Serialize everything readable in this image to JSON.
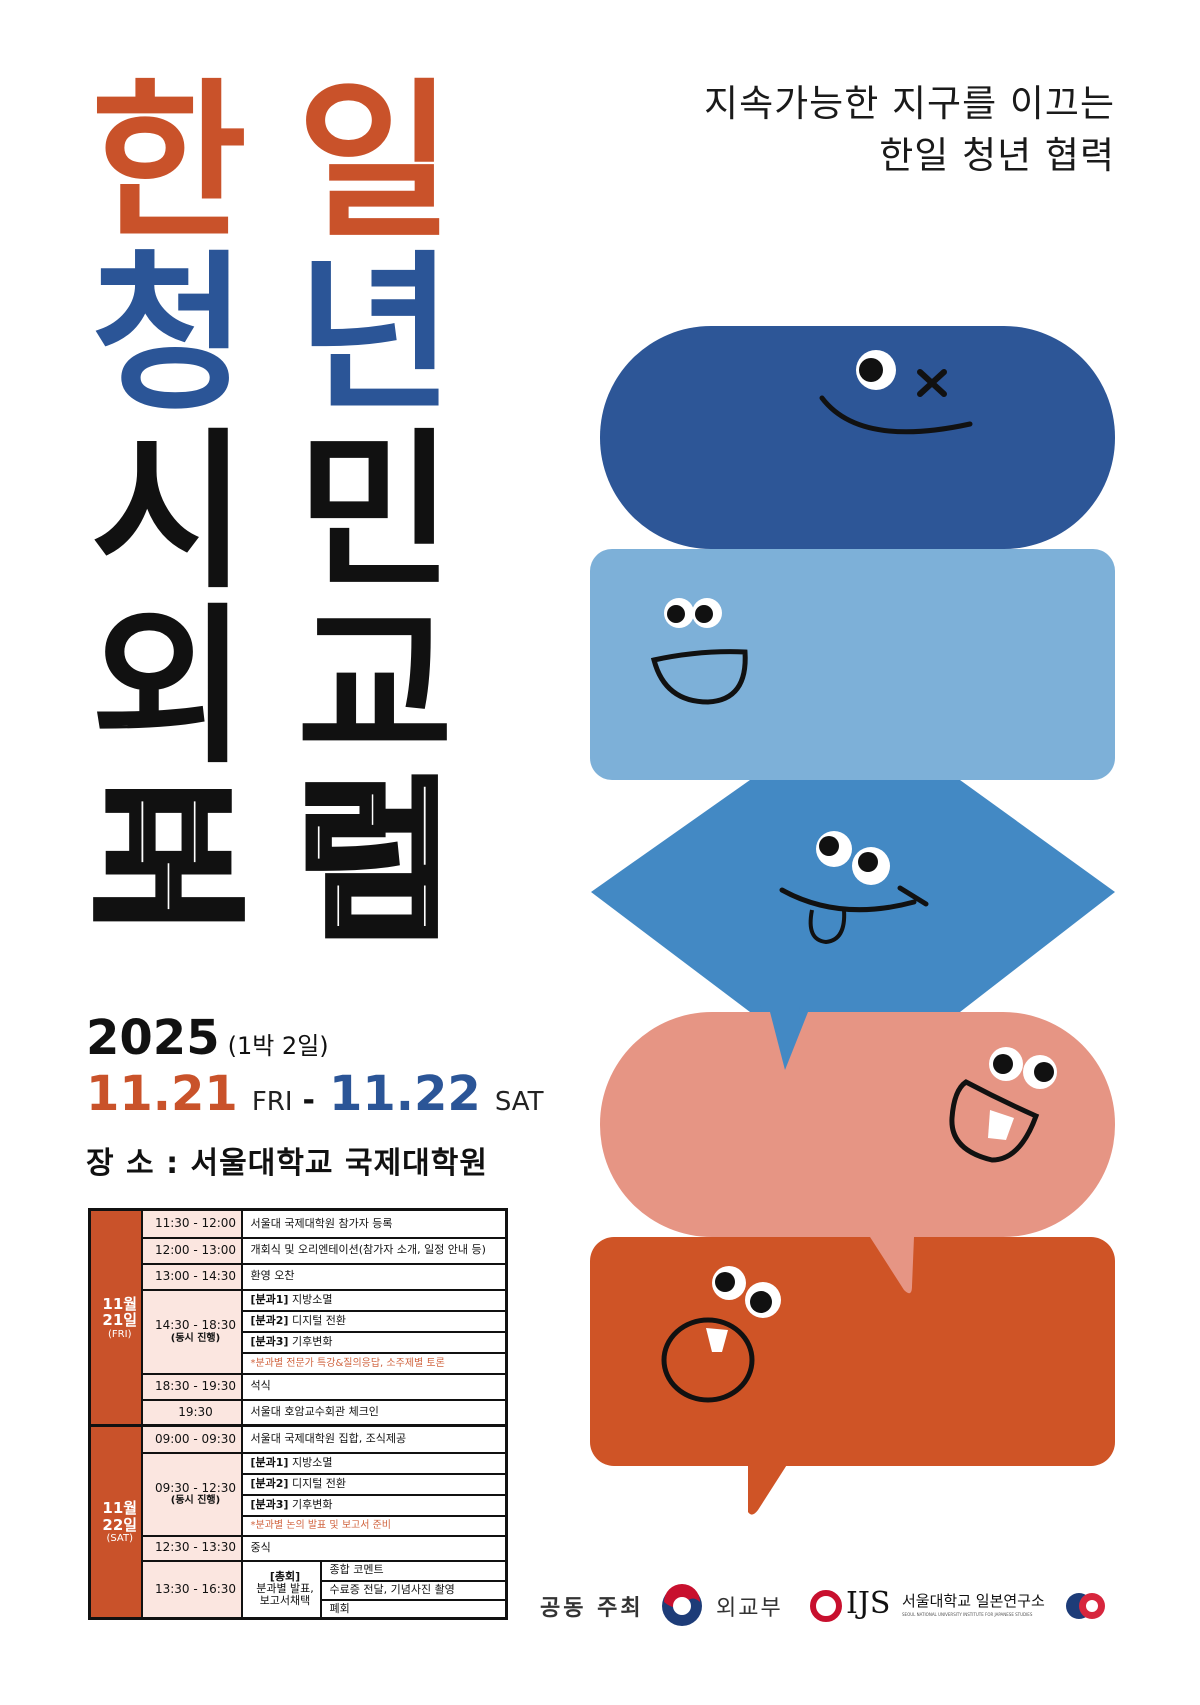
{
  "poster": {
    "title_chars": {
      "row1": [
        "한",
        "일"
      ],
      "row2": [
        "청",
        "년"
      ],
      "row3": [
        "시",
        "민"
      ],
      "row4": [
        "외",
        "교"
      ],
      "row5": [
        "포",
        "럼"
      ]
    },
    "subtitle": {
      "line1": "지속가능한 지구를 이끄는",
      "line2": "한일 청년 협력"
    },
    "year": "2025",
    "duration": "(1박 2일)",
    "start_date": "11.21",
    "start_day": "FRI",
    "dash": "-",
    "end_date": "11.22",
    "end_day": "SAT",
    "venue": "장  소 : 서울대학교 국제대학원",
    "colors": {
      "orange": "#C9522A",
      "blue": "#2B5597",
      "bubble_dark_blue": "#2D5697",
      "bubble_light_blue": "#7DB0D8",
      "bubble_mid_blue": "#4389C4",
      "bubble_pink": "#E69584",
      "bubble_orange": "#CF5426",
      "table_time_bg": "#FBE6E0"
    }
  },
  "schedule": {
    "day1": {
      "month_day": [
        "11월",
        "21일"
      ],
      "dow": "(FRI)",
      "rows": [
        {
          "time": "11:30 - 12:00",
          "item": "서울대 국제대학원 참가자 등록"
        },
        {
          "time": "12:00 - 13:00",
          "item": "개회식 및 오리엔테이션(참가자 소개, 일정 안내 등)"
        },
        {
          "time": "13:00 - 14:30",
          "item": "환영 오찬"
        },
        {
          "time": "14:30 - 18:30",
          "time_note": "(동시 진행)",
          "sessions": [
            {
              "tag": "[분과1]",
              "label": "지방소멸"
            },
            {
              "tag": "[분과2]",
              "label": "디지털 전환"
            },
            {
              "tag": "[분과3]",
              "label": "기후변화"
            }
          ],
          "note": "*분과별 전문가 특강&질의응답, 소주제별 토론"
        },
        {
          "time": "18:30 - 19:30",
          "item": "석식"
        },
        {
          "time": "19:30",
          "item": "서울대 호암교수회관 체크인"
        }
      ]
    },
    "day2": {
      "month_day": [
        "11월",
        "22일"
      ],
      "dow": "(SAT)",
      "rows": [
        {
          "time": "09:00 - 09:30",
          "item": "서울대 국제대학원 집합, 조식제공"
        },
        {
          "time": "09:30 - 12:30",
          "time_note": "(동시 진행)",
          "sessions": [
            {
              "tag": "[분과1]",
              "label": "지방소멸"
            },
            {
              "tag": "[분과2]",
              "label": "디지털 전환"
            },
            {
              "tag": "[분과3]",
              "label": "기후변화"
            }
          ],
          "note": "*분과별 논의 발표 및 보고서 준비"
        },
        {
          "time": "12:30 - 13:30",
          "item": "중식"
        },
        {
          "time": "13:30 - 16:30",
          "plenary": {
            "tag": "[총회]",
            "line1": "분과별 발표,",
            "line2": "보고서채택"
          },
          "items": [
            "종합 코멘트",
            "수료증 전달, 기념사진 촬영",
            "폐회"
          ]
        }
      ]
    }
  },
  "footer": {
    "label": "공동 주최",
    "org1": "외교부",
    "org2_logo": "IJS",
    "org2_name": "서울대학교 일본연구소",
    "org2_en": "SEOUL NATIONAL UNIVERSITY INSTITUTE FOR JAPANESE STUDIES",
    "icons": [
      "taegeuk-emblem-icon",
      "ijs-swirl-logo-icon",
      "korea-japan-60th-anniversary-logo-icon"
    ]
  }
}
